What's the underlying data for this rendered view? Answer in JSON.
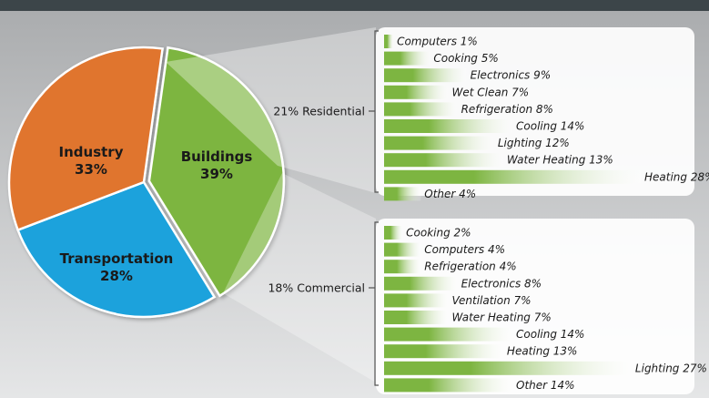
{
  "chart_data": [
    {
      "type": "pie",
      "slices": [
        {
          "label": "Buildings",
          "value": 39,
          "value_label": "39%",
          "color": "#7db541"
        },
        {
          "label": "Transportation",
          "value": 28,
          "value_label": "28%",
          "color": "#1fa2dc"
        },
        {
          "label": "Industry",
          "value": 33,
          "value_label": "33%",
          "color": "#e0752e"
        }
      ]
    },
    {
      "type": "bar",
      "orientation": "horizontal",
      "group_label": "21% Residential",
      "bar_color": "#7db541",
      "items": [
        {
          "label": "Computers 1%",
          "value": 1
        },
        {
          "label": "Cooking 5%",
          "value": 5
        },
        {
          "label": "Electronics 9%",
          "value": 9
        },
        {
          "label": "Wet Clean 7%",
          "value": 7
        },
        {
          "label": "Refrigeration 8%",
          "value": 8
        },
        {
          "label": "Cooling 14%",
          "value": 14
        },
        {
          "label": "Lighting 12%",
          "value": 12
        },
        {
          "label": "Water Heating 13%",
          "value": 13
        },
        {
          "label": "Heating 28%",
          "value": 28
        },
        {
          "label": "Other 4%",
          "value": 4
        }
      ]
    },
    {
      "type": "bar",
      "orientation": "horizontal",
      "group_label": "18% Commercial",
      "bar_color": "#7db541",
      "items": [
        {
          "label": "Cooking 2%",
          "value": 2
        },
        {
          "label": "Computers 4%",
          "value": 4
        },
        {
          "label": "Refrigeration 4%",
          "value": 4
        },
        {
          "label": "Electronics 8%",
          "value": 8
        },
        {
          "label": "Ventilation 7%",
          "value": 7
        },
        {
          "label": "Water Heating 7%",
          "value": 7
        },
        {
          "label": "Cooling 14%",
          "value": 14
        },
        {
          "label": "Heating 13%",
          "value": 13
        },
        {
          "label": "Lighting 27%",
          "value": 27
        },
        {
          "label": "Other 14%",
          "value": 14
        }
      ]
    }
  ],
  "colors": {
    "background_top": "#a9abad",
    "background_bottom": "#e5e6e7",
    "top_band": "#3c4549"
  }
}
